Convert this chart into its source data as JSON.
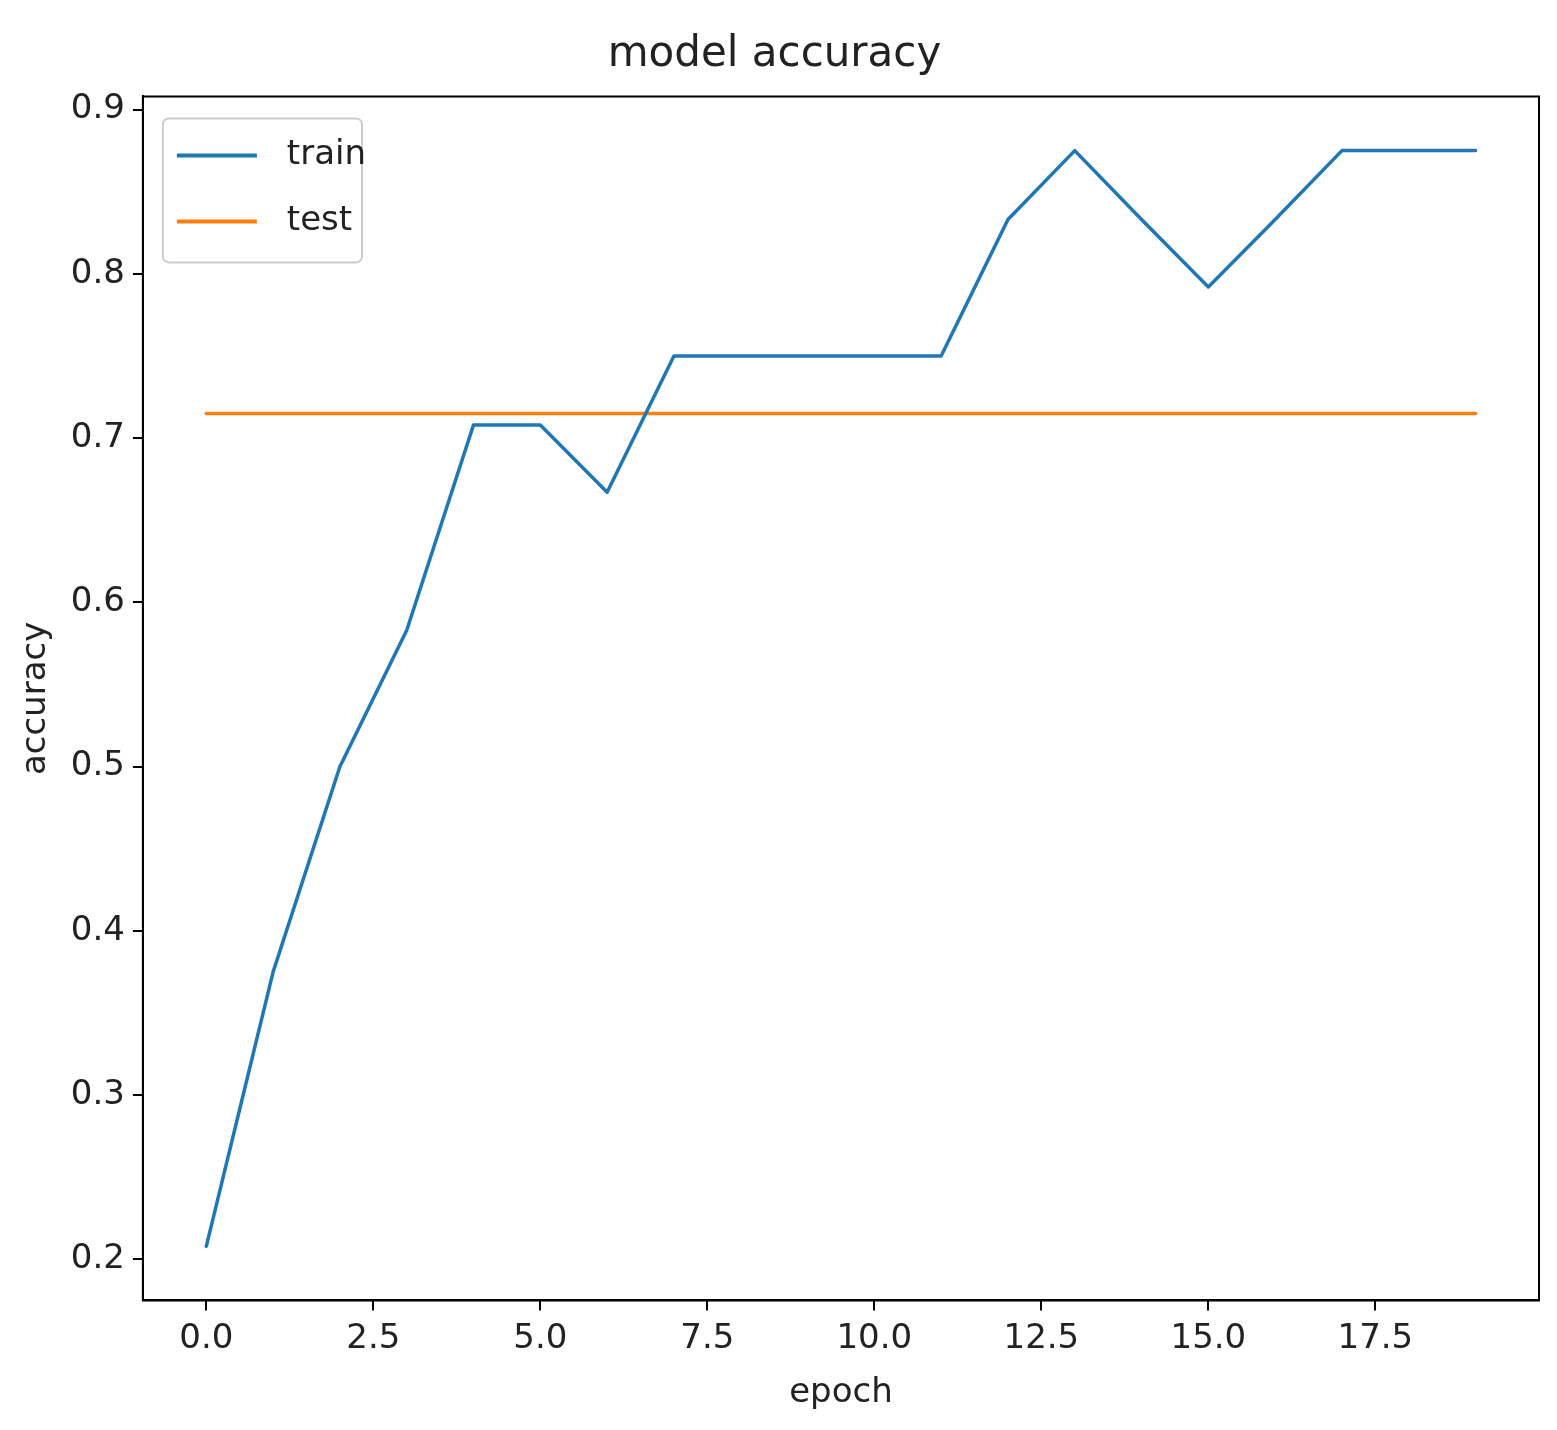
{
  "chart_data": {
    "type": "line",
    "title": "model accuracy",
    "xlabel": "epoch",
    "ylabel": "accuracy",
    "x": [
      0,
      1,
      2,
      3,
      4,
      5,
      6,
      7,
      8,
      9,
      10,
      11,
      12,
      13,
      14,
      15,
      16,
      17,
      18,
      19
    ],
    "series": [
      {
        "name": "train",
        "color": "#1f77b4",
        "values": [
          0.208,
          0.375,
          0.5,
          0.583,
          0.708,
          0.708,
          0.667,
          0.75,
          0.75,
          0.75,
          0.75,
          0.75,
          0.833,
          0.875,
          0.833,
          0.792,
          0.833,
          0.875,
          0.875,
          0.875
        ]
      },
      {
        "name": "test",
        "color": "#ff7f0e",
        "values": [
          0.715,
          0.715,
          0.715,
          0.715,
          0.715,
          0.715,
          0.715,
          0.715,
          0.715,
          0.715,
          0.715,
          0.715,
          0.715,
          0.715,
          0.715,
          0.715,
          0.715,
          0.715,
          0.715,
          0.715
        ]
      }
    ],
    "xlim": [
      -0.95,
      19.95
    ],
    "ylim": [
      0.175,
      0.908
    ],
    "xticks": [
      {
        "value": 0,
        "label": "0.0"
      },
      {
        "value": 2.5,
        "label": "2.5"
      },
      {
        "value": 5,
        "label": "5.0"
      },
      {
        "value": 7.5,
        "label": "7.5"
      },
      {
        "value": 10,
        "label": "10.0"
      },
      {
        "value": 12.5,
        "label": "12.5"
      },
      {
        "value": 15,
        "label": "15.0"
      },
      {
        "value": 17.5,
        "label": "17.5"
      }
    ],
    "yticks": [
      0.2,
      0.3,
      0.4,
      0.5,
      0.6,
      0.7,
      0.8,
      0.9
    ],
    "grid": false,
    "legend": "top left",
    "marker": "none",
    "line_style": "solid"
  }
}
